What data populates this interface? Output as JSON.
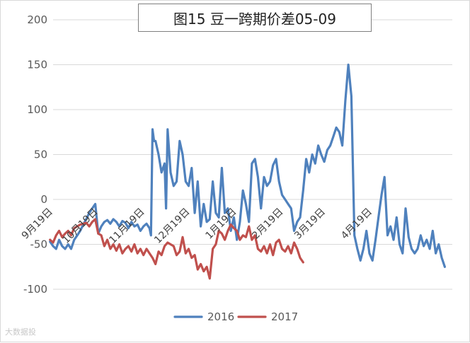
{
  "watermark": "大数据投",
  "chart_data": {
    "type": "line",
    "title": "图15 豆一跨期价差05-09",
    "xlabel": "",
    "ylabel": "",
    "ylim": [
      -100,
      200
    ],
    "yticks": [
      -100,
      -50,
      0,
      50,
      100,
      150,
      200
    ],
    "xlim": [
      0,
      265
    ],
    "x_tick_labels": [
      {
        "x": 0,
        "label": "9月19日"
      },
      {
        "x": 30,
        "label": "10月19日"
      },
      {
        "x": 61,
        "label": "11月19日"
      },
      {
        "x": 91,
        "label": "12月19日"
      },
      {
        "x": 122,
        "label": "1月19日"
      },
      {
        "x": 153,
        "label": "2月19日"
      },
      {
        "x": 181,
        "label": "3月19日"
      },
      {
        "x": 212,
        "label": "4月19日"
      }
    ],
    "grid": true,
    "legend_position": "bottom",
    "series": [
      {
        "name": "2016",
        "color": "#4f81bd",
        "points": [
          [
            -2,
            -47
          ],
          [
            0,
            -52
          ],
          [
            2,
            -55
          ],
          [
            4,
            -45
          ],
          [
            6,
            -52
          ],
          [
            8,
            -55
          ],
          [
            10,
            -50
          ],
          [
            12,
            -55
          ],
          [
            14,
            -45
          ],
          [
            16,
            -40
          ],
          [
            18,
            -35
          ],
          [
            20,
            -28
          ],
          [
            22,
            -22
          ],
          [
            24,
            -15
          ],
          [
            26,
            -10
          ],
          [
            28,
            -5
          ],
          [
            30,
            -38
          ],
          [
            32,
            -30
          ],
          [
            34,
            -25
          ],
          [
            36,
            -23
          ],
          [
            38,
            -27
          ],
          [
            40,
            -22
          ],
          [
            42,
            -25
          ],
          [
            44,
            -30
          ],
          [
            46,
            -24
          ],
          [
            48,
            -26
          ],
          [
            50,
            -32
          ],
          [
            52,
            -25
          ],
          [
            54,
            -30
          ],
          [
            56,
            -28
          ],
          [
            58,
            -35
          ],
          [
            60,
            -30
          ],
          [
            62,
            -27
          ],
          [
            64,
            -32
          ],
          [
            65,
            -40
          ],
          [
            66,
            78
          ],
          [
            67,
            65
          ],
          [
            68,
            65
          ],
          [
            70,
            50
          ],
          [
            72,
            30
          ],
          [
            74,
            40
          ],
          [
            75,
            -10
          ],
          [
            76,
            78
          ],
          [
            78,
            30
          ],
          [
            80,
            15
          ],
          [
            82,
            20
          ],
          [
            84,
            65
          ],
          [
            86,
            50
          ],
          [
            88,
            20
          ],
          [
            90,
            15
          ],
          [
            92,
            35
          ],
          [
            94,
            -15
          ],
          [
            96,
            20
          ],
          [
            98,
            -30
          ],
          [
            100,
            -5
          ],
          [
            102,
            -25
          ],
          [
            104,
            -22
          ],
          [
            106,
            20
          ],
          [
            108,
            -15
          ],
          [
            110,
            -20
          ],
          [
            112,
            35
          ],
          [
            114,
            -15
          ],
          [
            116,
            -10
          ],
          [
            118,
            -35
          ],
          [
            120,
            -20
          ],
          [
            122,
            -45
          ],
          [
            124,
            -25
          ],
          [
            126,
            10
          ],
          [
            128,
            -5
          ],
          [
            130,
            -25
          ],
          [
            132,
            40
          ],
          [
            134,
            45
          ],
          [
            136,
            25
          ],
          [
            138,
            -10
          ],
          [
            140,
            25
          ],
          [
            142,
            15
          ],
          [
            144,
            20
          ],
          [
            146,
            38
          ],
          [
            148,
            45
          ],
          [
            150,
            20
          ],
          [
            152,
            5
          ],
          [
            154,
            0
          ],
          [
            156,
            -5
          ],
          [
            158,
            -10
          ],
          [
            160,
            -35
          ],
          [
            162,
            -25
          ],
          [
            164,
            -20
          ],
          [
            166,
            10
          ],
          [
            168,
            45
          ],
          [
            170,
            30
          ],
          [
            172,
            50
          ],
          [
            174,
            40
          ],
          [
            176,
            60
          ],
          [
            178,
            50
          ],
          [
            180,
            42
          ],
          [
            182,
            55
          ],
          [
            184,
            60
          ],
          [
            186,
            70
          ],
          [
            188,
            80
          ],
          [
            190,
            75
          ],
          [
            192,
            60
          ],
          [
            194,
            110
          ],
          [
            196,
            150
          ],
          [
            198,
            115
          ],
          [
            200,
            -40
          ],
          [
            202,
            -55
          ],
          [
            204,
            -68
          ],
          [
            206,
            -55
          ],
          [
            208,
            -35
          ],
          [
            210,
            -60
          ],
          [
            212,
            -68
          ],
          [
            214,
            -45
          ],
          [
            216,
            -20
          ],
          [
            218,
            5
          ],
          [
            220,
            25
          ],
          [
            222,
            -40
          ],
          [
            224,
            -30
          ],
          [
            226,
            -45
          ],
          [
            228,
            -20
          ],
          [
            230,
            -50
          ],
          [
            232,
            -60
          ],
          [
            234,
            -10
          ],
          [
            236,
            -42
          ],
          [
            238,
            -55
          ],
          [
            240,
            -60
          ],
          [
            242,
            -55
          ],
          [
            244,
            -40
          ],
          [
            246,
            -52
          ],
          [
            248,
            -45
          ],
          [
            250,
            -55
          ],
          [
            252,
            -35
          ],
          [
            254,
            -60
          ],
          [
            256,
            -50
          ],
          [
            258,
            -65
          ],
          [
            260,
            -75
          ]
        ]
      },
      {
        "name": "2017",
        "color": "#c0504d",
        "points": [
          [
            -2,
            -45
          ],
          [
            0,
            -48
          ],
          [
            2,
            -40
          ],
          [
            4,
            -35
          ],
          [
            6,
            -42
          ],
          [
            8,
            -38
          ],
          [
            10,
            -35
          ],
          [
            12,
            -40
          ],
          [
            14,
            -32
          ],
          [
            16,
            -30
          ],
          [
            18,
            -28
          ],
          [
            20,
            -27
          ],
          [
            22,
            -26
          ],
          [
            24,
            -30
          ],
          [
            26,
            -25
          ],
          [
            28,
            -22
          ],
          [
            30,
            -38
          ],
          [
            32,
            -40
          ],
          [
            34,
            -52
          ],
          [
            36,
            -45
          ],
          [
            38,
            -55
          ],
          [
            40,
            -50
          ],
          [
            42,
            -57
          ],
          [
            44,
            -50
          ],
          [
            46,
            -60
          ],
          [
            48,
            -55
          ],
          [
            50,
            -52
          ],
          [
            52,
            -58
          ],
          [
            54,
            -50
          ],
          [
            56,
            -60
          ],
          [
            58,
            -55
          ],
          [
            60,
            -62
          ],
          [
            62,
            -55
          ],
          [
            64,
            -60
          ],
          [
            66,
            -65
          ],
          [
            68,
            -72
          ],
          [
            70,
            -58
          ],
          [
            72,
            -62
          ],
          [
            74,
            -52
          ],
          [
            76,
            -48
          ],
          [
            78,
            -50
          ],
          [
            80,
            -52
          ],
          [
            82,
            -62
          ],
          [
            84,
            -58
          ],
          [
            86,
            -42
          ],
          [
            88,
            -60
          ],
          [
            90,
            -55
          ],
          [
            92,
            -65
          ],
          [
            94,
            -62
          ],
          [
            96,
            -78
          ],
          [
            98,
            -72
          ],
          [
            100,
            -80
          ],
          [
            102,
            -75
          ],
          [
            104,
            -88
          ],
          [
            106,
            -55
          ],
          [
            108,
            -50
          ],
          [
            110,
            -35
          ],
          [
            112,
            -38
          ],
          [
            114,
            -45
          ],
          [
            116,
            -35
          ],
          [
            118,
            -28
          ],
          [
            120,
            -32
          ],
          [
            122,
            -35
          ],
          [
            124,
            -45
          ],
          [
            126,
            -40
          ],
          [
            128,
            -42
          ],
          [
            130,
            -30
          ],
          [
            132,
            -45
          ],
          [
            134,
            -40
          ],
          [
            136,
            -55
          ],
          [
            138,
            -58
          ],
          [
            140,
            -52
          ],
          [
            142,
            -60
          ],
          [
            144,
            -50
          ],
          [
            146,
            -62
          ],
          [
            148,
            -48
          ],
          [
            150,
            -45
          ],
          [
            152,
            -55
          ],
          [
            154,
            -58
          ],
          [
            156,
            -52
          ],
          [
            158,
            -60
          ],
          [
            160,
            -48
          ],
          [
            162,
            -55
          ],
          [
            164,
            -65
          ],
          [
            166,
            -70
          ]
        ]
      }
    ]
  }
}
